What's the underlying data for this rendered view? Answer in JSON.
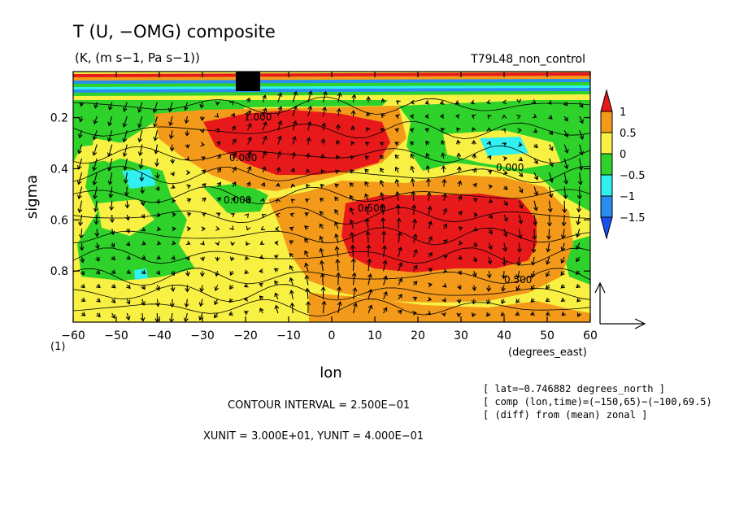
{
  "chart_data": {
    "type": "heatmap",
    "title": "T (U, −OMG) composite",
    "subtitle": "(K, (m s−1, Pa s−1))",
    "experiment": "T79L48_non_control",
    "xlabel": "lon",
    "xunit_label": "(degrees_east)",
    "ylabel": "sigma",
    "y_corner_label": "(1)",
    "x_ticks": [
      "−60",
      "−50",
      "−40",
      "−30",
      "−20",
      "−10",
      "0",
      "10",
      "20",
      "30",
      "40",
      "50",
      "60"
    ],
    "x_tick_values": [
      -60,
      -50,
      -40,
      -30,
      -20,
      -10,
      0,
      10,
      20,
      30,
      40,
      50,
      60
    ],
    "y_ticks": [
      "0.2",
      "0.4",
      "0.6",
      "0.8"
    ],
    "y_tick_values": [
      0.2,
      0.4,
      0.6,
      0.8
    ],
    "xlim": [
      -60,
      60
    ],
    "ylim": [
      1.0,
      0.02
    ],
    "colorbar": {
      "labels": [
        "1",
        "0.5",
        "0",
        "−0.5",
        "−1",
        "−1.5"
      ],
      "bins": [
        {
          "range": ">1",
          "color": "#e8191b"
        },
        {
          "range": "0.5 to 1",
          "color": "#f39a1a"
        },
        {
          "range": "0 to 0.5",
          "color": "#f8f043"
        },
        {
          "range": "−0.5 to 0",
          "color": "#2ed22a"
        },
        {
          "range": "−1 to −0.5",
          "color": "#30f0f0"
        },
        {
          "range": "−1.5 to −1",
          "color": "#2a8ef0"
        },
        {
          "range": "<−1.5",
          "color": "#1a4ff0"
        }
      ]
    },
    "regions": [
      {
        "lon": [
          -60,
          60
        ],
        "sigma": [
          0.02,
          0.12
        ],
        "value": "strong stripes (upper levels)"
      },
      {
        "lon": [
          -25,
          0
        ],
        "sigma": [
          0.15,
          0.38
        ],
        "value": ">1"
      },
      {
        "lon": [
          5,
          48
        ],
        "sigma": [
          0.5,
          0.82
        ],
        "value": ">1"
      },
      {
        "lon": [
          -47,
          -43
        ],
        "sigma": [
          0.43,
          0.47
        ],
        "value": "−1 to −0.5"
      },
      {
        "lon": [
          28,
          42
        ],
        "sigma": [
          0.26,
          0.33
        ],
        "value": "−1 to −0.5"
      }
    ],
    "contour_labels": [
      "0.000",
      "0.000",
      "0.000",
      "1.000",
      "0.500",
      "0.500"
    ],
    "vector_reference": {
      "xunit": "3.000E+01",
      "yunit": "4.000E−01"
    }
  },
  "annotations": {
    "contour_interval": "CONTOUR INTERVAL = 2.500E−01",
    "units": "XUNIT = 3.000E+01, YUNIT = 4.000E−01",
    "info_lines": [
      "[ lat=−0.746882 degrees_north ]",
      "[ comp (lon,time)=(−150,65)−(−100,69.5)",
      "[ (diff) from (mean) zonal ]"
    ]
  },
  "colors": {
    "red": "#e8191b",
    "orange": "#f39a1a",
    "yellow": "#f8f043",
    "green": "#2ed22a",
    "cyan": "#30f0f0",
    "blue": "#2a8ef0",
    "darkblue": "#1a4ff0"
  }
}
